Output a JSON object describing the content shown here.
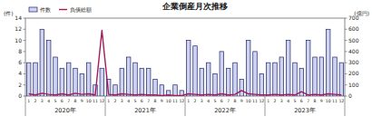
{
  "chart_data": {
    "type": "bar",
    "title": "企業倒産月次推移",
    "y_label": "(件)",
    "y2_label": "(億円)",
    "categories": [
      "1",
      "2",
      "3",
      "4",
      "5",
      "6",
      "7",
      "8",
      "9",
      "10",
      "11",
      "12",
      "1",
      "2",
      "3",
      "4",
      "5",
      "6",
      "7",
      "8",
      "9",
      "10",
      "11",
      "12",
      "1",
      "2",
      "3",
      "4",
      "5",
      "6",
      "7",
      "8",
      "9",
      "10",
      "11",
      "12",
      "1",
      "2",
      "3",
      "4",
      "5",
      "6",
      "7",
      "8",
      "9",
      "10",
      "11",
      "12"
    ],
    "x_group_labels": [
      "2020年",
      "2021年",
      "2022年",
      "2023年"
    ],
    "series": [
      {
        "name": "件数",
        "color": "#cfd3f0",
        "type": "bar",
        "values": [
          6,
          6,
          12,
          10,
          7,
          5,
          6,
          5,
          4,
          6,
          2,
          5,
          3,
          2,
          5,
          7,
          6,
          5,
          5,
          3,
          2,
          1,
          2,
          1,
          10,
          9,
          5,
          6,
          4,
          8,
          5,
          6,
          3,
          10,
          8,
          4,
          6,
          6,
          7,
          10,
          6,
          5,
          10,
          7,
          7,
          12,
          7,
          6
        ]
      },
      {
        "name": "負債総額",
        "color": "#a3195b",
        "type": "line",
        "axis": "y2",
        "values": [
          20,
          10,
          25,
          15,
          10,
          20,
          10,
          25,
          15,
          20,
          10,
          590,
          15,
          10,
          20,
          15,
          10,
          15,
          10,
          10,
          5,
          10,
          5,
          5,
          20,
          15,
          10,
          15,
          10,
          20,
          10,
          15,
          50,
          20,
          15,
          10,
          10,
          15,
          10,
          15,
          10,
          40,
          10,
          15,
          10,
          20,
          15,
          10
        ]
      }
    ],
    "ylim": [
      0,
      14
    ],
    "yticks": [
      0,
      2,
      4,
      6,
      8,
      10,
      12,
      14
    ],
    "y2lim": [
      0,
      700
    ],
    "y2ticks": [
      0,
      100,
      200,
      300,
      400,
      500,
      600,
      700
    ],
    "grid": false,
    "legend": "top-left"
  }
}
